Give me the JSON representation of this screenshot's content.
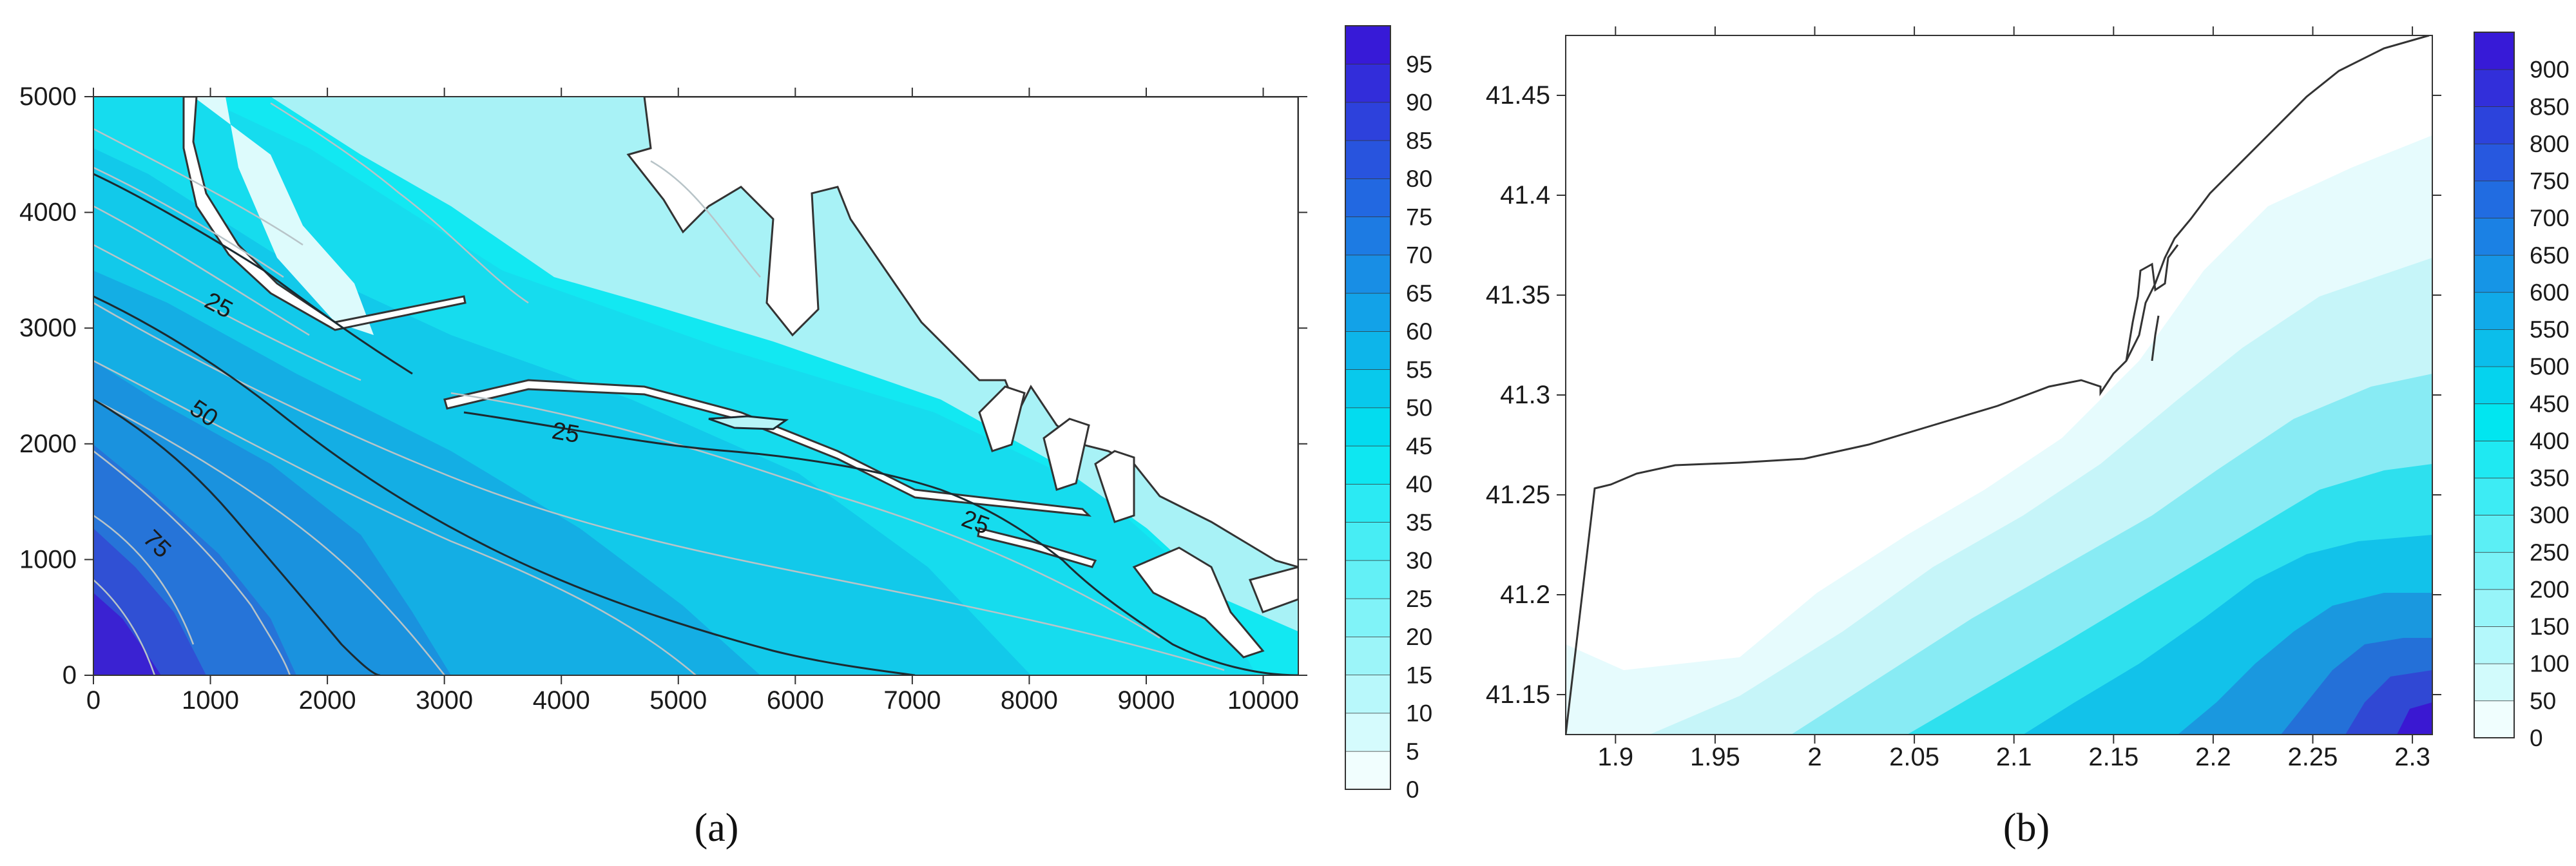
{
  "colors": {
    "scale_low": "#ffffff",
    "scale_mid": "#00e6f0",
    "scale_high": "#3a10d6",
    "coastline": "#333333",
    "contour_major": "#1c2a30",
    "contour_minor": "#b8c4c8"
  },
  "chart_data": [
    {
      "type": "heatmap",
      "caption": "(a)",
      "x_ticks": [
        "0",
        "1000",
        "2000",
        "3000",
        "4000",
        "5000",
        "6000",
        "7000",
        "8000",
        "9000",
        "10000"
      ],
      "y_ticks": [
        "0",
        "1000",
        "2000",
        "3000",
        "4000",
        "5000"
      ],
      "xlim": [
        0,
        10300
      ],
      "ylim": [
        0,
        5000
      ],
      "contour_labels": [
        "25",
        "50",
        "75",
        "25",
        "25"
      ],
      "colorbar_ticks": [
        "0",
        "5",
        "10",
        "15",
        "20",
        "25",
        "30",
        "35",
        "40",
        "45",
        "50",
        "55",
        "60",
        "65",
        "70",
        "75",
        "80",
        "85",
        "90",
        "95"
      ],
      "colorbar_range": [
        0,
        100
      ]
    },
    {
      "type": "heatmap",
      "caption": "(b)",
      "x_ticks": [
        "1.9",
        "1.95",
        "2",
        "2.05",
        "2.1",
        "2.15",
        "2.2",
        "2.25",
        "2.3"
      ],
      "y_ticks": [
        "41.15",
        "41.2",
        "41.25",
        "41.3",
        "41.35",
        "41.4",
        "41.45"
      ],
      "xlim": [
        1.875,
        2.31
      ],
      "ylim": [
        41.13,
        41.48
      ],
      "colorbar_ticks": [
        "0",
        "50",
        "100",
        "150",
        "200",
        "250",
        "300",
        "350",
        "400",
        "450",
        "500",
        "550",
        "600",
        "650",
        "700",
        "750",
        "800",
        "850",
        "900"
      ],
      "colorbar_range": [
        0,
        950
      ]
    }
  ]
}
